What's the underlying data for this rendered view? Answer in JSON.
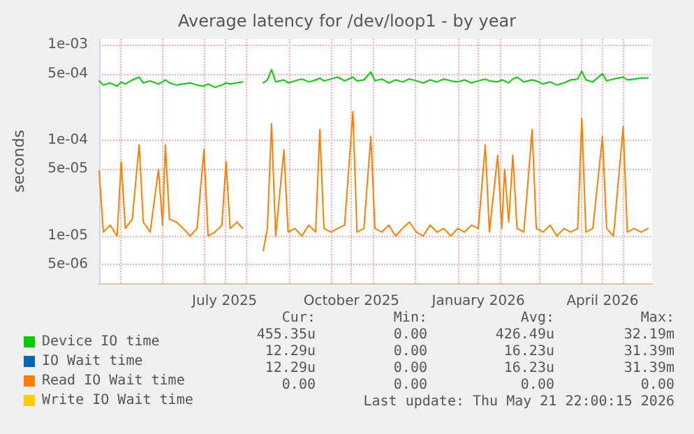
{
  "chart_data": {
    "type": "line",
    "title": "Average latency for /dev/loop1 - by year",
    "ylabel": "seconds",
    "log": "y",
    "grid": true,
    "legend": "bottom left",
    "marker": "none",
    "line_style": "solid",
    "ylim": [
      3.2e-06,
      0.00115
    ],
    "yticks": [
      {
        "value": 0.001,
        "label": "1e-03"
      },
      {
        "value": 0.0005,
        "label": "5e-04"
      },
      {
        "value": 0.0001,
        "label": "1e-04"
      },
      {
        "value": 5e-05,
        "label": "5e-05"
      },
      {
        "value": 1e-05,
        "label": "1e-05"
      },
      {
        "value": 5e-06,
        "label": "5e-06"
      }
    ],
    "xlim": [
      "2025-04-16",
      "2026-05-22"
    ],
    "xticks": [
      {
        "value": "2025-05-01",
        "label": null
      },
      {
        "value": "2025-06-01",
        "label": null
      },
      {
        "value": "2025-07-01",
        "label": null
      },
      {
        "value": "2025-07-16",
        "label": "July 2025"
      },
      {
        "value": "2025-08-01",
        "label": null
      },
      {
        "value": "2025-09-01",
        "label": null
      },
      {
        "value": "2025-10-01",
        "label": null
      },
      {
        "value": "2025-10-16",
        "label": "October 2025"
      },
      {
        "value": "2025-11-01",
        "label": null
      },
      {
        "value": "2025-12-01",
        "label": null
      },
      {
        "value": "2026-01-01",
        "label": null
      },
      {
        "value": "2026-01-16",
        "label": "January 2026"
      },
      {
        "value": "2026-02-01",
        "label": null
      },
      {
        "value": "2026-03-01",
        "label": null
      },
      {
        "value": "2026-04-01",
        "label": null
      },
      {
        "value": "2026-04-16",
        "label": "April 2026"
      },
      {
        "value": "2026-05-01",
        "label": null
      }
    ],
    "x": [
      "2025-04-16",
      "2025-04-19",
      "2025-04-24",
      "2025-04-29",
      "2025-05-02",
      "2025-05-05",
      "2025-05-10",
      "2025-05-15",
      "2025-05-18",
      "2025-05-23",
      "2025-05-29",
      "2025-06-01",
      "2025-06-03",
      "2025-06-06",
      "2025-06-11",
      "2025-06-16",
      "2025-06-21",
      "2025-06-26",
      "2025-07-01",
      "2025-07-04",
      "2025-07-09",
      "2025-07-14",
      "2025-07-17",
      "2025-07-20",
      "2025-07-25",
      "2025-07-29",
      "2025-08-03",
      "2025-08-13",
      "2025-08-16",
      "2025-08-19",
      "2025-08-22",
      "2025-08-28",
      "2025-08-31",
      "2025-09-05",
      "2025-09-10",
      "2025-09-15",
      "2025-09-20",
      "2025-09-23",
      "2025-09-26",
      "2025-10-01",
      "2025-10-06",
      "2025-10-11",
      "2025-10-17",
      "2025-10-20",
      "2025-10-25",
      "2025-10-30",
      "2025-11-02",
      "2025-11-07",
      "2025-11-12",
      "2025-11-17",
      "2025-11-22",
      "2025-11-27",
      "2025-12-02",
      "2025-12-07",
      "2025-12-12",
      "2025-12-17",
      "2025-12-22",
      "2025-12-27",
      "2026-01-01",
      "2026-01-06",
      "2026-01-11",
      "2026-01-16",
      "2026-01-21",
      "2026-01-24",
      "2026-01-30",
      "2026-02-02",
      "2026-02-04",
      "2026-02-07",
      "2026-02-10",
      "2026-02-13",
      "2026-02-18",
      "2026-02-24",
      "2026-02-27",
      "2026-03-04",
      "2026-03-09",
      "2026-03-14",
      "2026-03-19",
      "2026-03-24",
      "2026-03-29",
      "2026-04-01",
      "2026-04-04",
      "2026-04-09",
      "2026-04-16",
      "2026-04-19",
      "2026-04-24",
      "2026-05-01",
      "2026-05-04",
      "2026-05-09",
      "2026-05-14",
      "2026-05-19"
    ],
    "series": [
      {
        "name": "Device IO time",
        "color": "#00cc00",
        "values": [
          0.00042,
          0.00038,
          0.0004,
          0.00037,
          0.00041,
          0.00039,
          0.00043,
          0.00046,
          0.0004,
          0.00042,
          0.00039,
          0.00041,
          0.00043,
          0.0004,
          0.00038,
          0.00039,
          0.0004,
          0.00038,
          0.00037,
          0.00039,
          0.00036,
          0.00038,
          0.0004,
          0.00039,
          0.0004,
          0.00041,
          null,
          0.0004,
          0.00043,
          0.00055,
          0.00041,
          0.00043,
          0.0004,
          0.00042,
          0.00044,
          0.00041,
          0.00043,
          0.00045,
          0.00042,
          0.00044,
          0.00046,
          0.00042,
          0.00046,
          0.00042,
          0.00043,
          0.00052,
          0.00042,
          0.00044,
          0.0004,
          0.00043,
          0.00041,
          0.00044,
          0.00042,
          0.0004,
          0.00043,
          0.00041,
          0.00044,
          0.00042,
          0.00041,
          0.00043,
          0.0004,
          0.00042,
          0.00044,
          0.00042,
          0.00041,
          0.00043,
          0.00042,
          0.0004,
          0.00044,
          0.00046,
          0.00041,
          0.00043,
          0.00042,
          0.00039,
          0.00041,
          0.00038,
          0.0004,
          0.00043,
          0.00044,
          0.00053,
          0.00043,
          0.00041,
          0.0005,
          0.00042,
          0.00044,
          0.00046,
          0.00043,
          0.00044,
          0.00045,
          0.00045
        ]
      },
      {
        "name": "IO Wait time",
        "color": "#0066b3",
        "values": [
          null,
          null,
          null,
          null,
          null,
          null,
          null,
          null,
          null,
          null,
          null,
          null,
          null,
          null,
          null,
          null,
          null,
          null,
          null,
          null,
          null,
          null,
          null,
          null,
          null,
          null,
          null,
          null,
          null,
          null,
          null,
          null,
          null,
          null,
          null,
          null,
          null,
          null,
          null,
          null,
          null,
          null,
          null,
          null,
          null,
          null,
          null,
          null,
          null,
          null,
          null,
          null,
          null,
          null,
          null,
          null,
          null,
          null,
          null,
          null,
          null,
          null,
          null,
          null,
          null,
          null,
          null,
          null,
          null,
          null,
          null,
          null,
          null,
          null,
          null,
          null,
          null,
          null,
          null,
          null,
          null,
          null,
          null,
          null,
          null,
          null,
          null,
          null,
          null,
          null
        ]
      },
      {
        "name": "Read IO Wait time",
        "color": "#ff8000",
        "values": [
          4.8e-05,
          1.1e-05,
          1.3e-05,
          1e-05,
          6e-05,
          1.2e-05,
          1.5e-05,
          9e-05,
          1.4e-05,
          1.1e-05,
          5e-05,
          1.3e-05,
          9e-05,
          1.5e-05,
          1.4e-05,
          1.2e-05,
          1e-05,
          1.2e-05,
          8e-05,
          1e-05,
          1.1e-05,
          1.3e-05,
          6e-05,
          1.2e-05,
          1.4e-05,
          1.2e-05,
          null,
          7e-06,
          1.2e-05,
          0.00015,
          1e-05,
          8e-05,
          1.1e-05,
          1.2e-05,
          1e-05,
          1.3e-05,
          1.1e-05,
          0.00013,
          1.2e-05,
          1.1e-05,
          1.2e-05,
          1.3e-05,
          0.0002,
          1.1e-05,
          1.2e-05,
          0.00011,
          1.2e-05,
          1.1e-05,
          1.3e-05,
          1e-05,
          1.2e-05,
          1.4e-05,
          1.1e-05,
          1e-05,
          1.3e-05,
          1.1e-05,
          1.2e-05,
          1e-05,
          1.2e-05,
          1.1e-05,
          1.3e-05,
          1.2e-05,
          9e-05,
          1.1e-05,
          7e-05,
          1.2e-05,
          5e-05,
          1.4e-05,
          7e-05,
          1.2e-05,
          1.1e-05,
          0.00013,
          1.2e-05,
          1.1e-05,
          1.3e-05,
          1e-05,
          1.2e-05,
          1.1e-05,
          1.2e-05,
          0.00017,
          1.1e-05,
          1.2e-05,
          0.00011,
          1.2e-05,
          1e-05,
          0.00014,
          1.1e-05,
          1.2e-05,
          1.1e-05,
          1.2e-05
        ]
      },
      {
        "name": "Write IO Wait time",
        "color": "#ffcc00",
        "values": [
          null,
          null,
          null,
          null,
          null,
          null,
          null,
          null,
          null,
          null,
          null,
          null,
          null,
          null,
          null,
          null,
          null,
          null,
          null,
          null,
          null,
          null,
          null,
          null,
          null,
          null,
          null,
          null,
          null,
          null,
          null,
          null,
          null,
          null,
          null,
          null,
          null,
          null,
          null,
          null,
          null,
          null,
          null,
          null,
          null,
          null,
          null,
          null,
          null,
          null,
          null,
          null,
          null,
          null,
          null,
          null,
          null,
          null,
          null,
          null,
          null,
          null,
          null,
          null,
          null,
          null,
          null,
          null,
          null,
          null,
          null,
          null,
          null,
          null,
          null,
          null,
          null,
          null,
          null,
          null,
          null,
          null,
          null,
          null,
          null,
          null,
          null,
          null,
          null,
          null
        ]
      }
    ],
    "annotations": [
      "Cur:",
      "Min:",
      "Avg:",
      "Max:",
      "455.35u",
      "0.00",
      "426.49u",
      "32.19m",
      "12.29u",
      "0.00",
      "16.23u",
      "31.39m",
      "12.29u",
      "0.00",
      "16.23u",
      "31.39m",
      "0.00",
      "0.00",
      "0.00",
      "0.00",
      "Last update: Thu May 21 22:00:15 2026"
    ]
  }
}
